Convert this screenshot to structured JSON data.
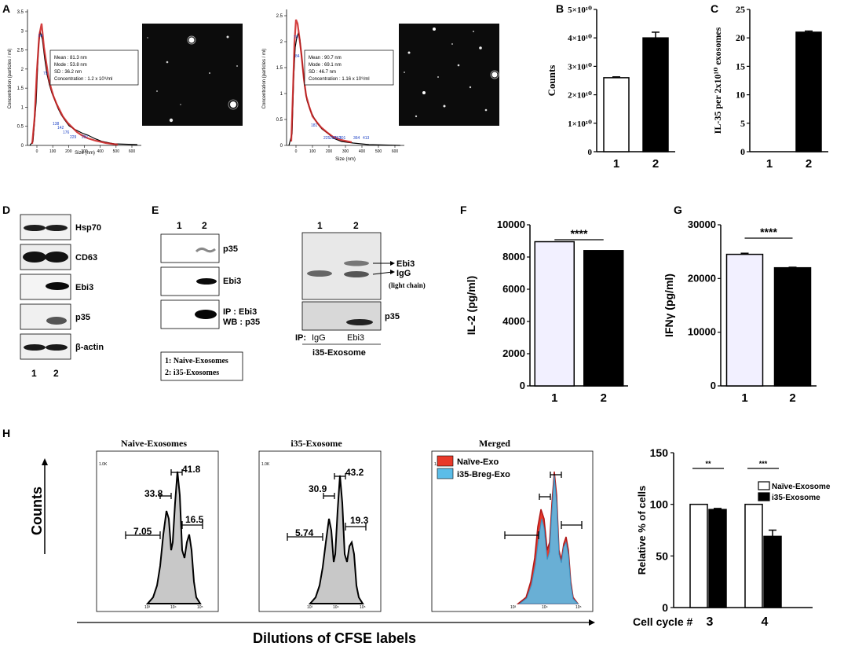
{
  "panel_letters": {
    "A": "A",
    "B": "B",
    "C": "C",
    "D": "D",
    "E": "E",
    "F": "F",
    "G": "G",
    "H": "H"
  },
  "panel_a": {
    "ylabel": "Concentration (particles / ml)",
    "xlabel": "Size (nm)",
    "left": {
      "yticks": [
        "3.5",
        "3",
        "2.5",
        "2",
        "1.5",
        "1",
        "0.5",
        "0"
      ],
      "xticks": [
        "0",
        "100",
        "200",
        "300",
        "400",
        "500",
        "600"
      ],
      "peak_labels": [
        "54",
        "79",
        "138",
        "142",
        "176",
        "229",
        "297"
      ],
      "stats": [
        "Mean : 81.3 nm",
        "Mode : 53.8 nm",
        "SD : 36.2 nm",
        "Concentration : 1.2 x 10⁹/ml"
      ]
    },
    "right": {
      "yticks": [
        "2.5",
        "2",
        "1.5",
        "1",
        "0.5",
        "0"
      ],
      "xticks": [
        "0",
        "100",
        "200",
        "300",
        "400",
        "500",
        "600"
      ],
      "peak_labels": [
        "70",
        "84",
        "181",
        "225",
        "252",
        "263",
        "301",
        "364",
        "413"
      ],
      "stats": [
        "Mean : 90.7 nm",
        "Mode : 69.1 nm",
        "SD : 46.7 nm",
        "Concentration : 1.16 x 10⁹/ml"
      ]
    }
  },
  "chart_data": [
    {
      "id": "B",
      "type": "bar",
      "title": "",
      "ylabel": "Counts",
      "xlabel": "",
      "categories": [
        "1",
        "2"
      ],
      "values": [
        26000000000.0,
        40000000000.0
      ],
      "errors": [
        300000000.0,
        2000000000.0
      ],
      "ylim": [
        0,
        50000000000.0
      ],
      "yticks": [
        "0",
        "1×10¹⁰",
        "2×10¹⁰",
        "3×10¹⁰",
        "4×10¹⁰",
        "5×10¹⁰"
      ]
    },
    {
      "id": "C",
      "type": "bar",
      "title": "",
      "ylabel": "IL-35 per 2x10¹⁰ exosomes",
      "xlabel": "",
      "categories": [
        "1",
        "2"
      ],
      "values": [
        0,
        21
      ],
      "errors": [
        0,
        0.2
      ],
      "ylim": [
        0,
        25
      ],
      "yticks": [
        "0",
        "5",
        "10",
        "15",
        "20",
        "25"
      ]
    },
    {
      "id": "F",
      "type": "bar",
      "title": "",
      "ylabel": "IL-2 (pg/ml)",
      "xlabel": "",
      "categories": [
        "1",
        "2"
      ],
      "values": [
        8950,
        8400
      ],
      "errors": [
        0,
        0
      ],
      "ylim": [
        0,
        10000
      ],
      "yticks": [
        "0",
        "2000",
        "4000",
        "6000",
        "8000",
        "10000"
      ],
      "significance": "****"
    },
    {
      "id": "G",
      "type": "bar",
      "title": "",
      "ylabel": "IFNγ (pg/ml)",
      "xlabel": "",
      "categories": [
        "1",
        "2"
      ],
      "values": [
        24500,
        22000
      ],
      "errors": [
        200,
        100
      ],
      "ylim": [
        0,
        30000
      ],
      "yticks": [
        "0",
        "10000",
        "20000",
        "30000"
      ],
      "significance": "****"
    },
    {
      "id": "H-bar",
      "type": "bar",
      "title": "",
      "ylabel": "Relative % of cells",
      "xlabel": "Cell cycle #",
      "categories": [
        "3",
        "4"
      ],
      "series": [
        {
          "name": "Naïve-Exosome",
          "values": [
            100,
            100
          ],
          "errors": [
            0,
            0
          ]
        },
        {
          "name": "i35-Exosome",
          "values": [
            95,
            69
          ],
          "errors": [
            1,
            6
          ]
        }
      ],
      "ylim": [
        0,
        150
      ],
      "yticks": [
        "0",
        "50",
        "100",
        "150"
      ],
      "significance": [
        "**",
        "***"
      ]
    }
  ],
  "panel_d": {
    "bands": [
      "Hsp70",
      "CD63",
      "Ebi3",
      "p35",
      "β-actin"
    ],
    "lanes": [
      "1",
      "2"
    ]
  },
  "panel_e": {
    "lanes": [
      "1",
      "2"
    ],
    "left_bands": [
      "p35",
      "Ebi3",
      "IP : Ebi3",
      "WB : p35"
    ],
    "legend": [
      "1: Naive-Exosomes",
      "2: i35-Exosomes"
    ],
    "right_lanes": [
      "1",
      "2"
    ],
    "right_labels": [
      "Ebi3",
      "IgG",
      "(light chain)",
      "p35"
    ],
    "ip_label": "IP:",
    "ip_lanes": [
      "IgG",
      "Ebi3"
    ],
    "ip_caption": "i35-Exosome"
  },
  "panel_h": {
    "ylabel": "Counts",
    "xlabel": "Dilutions of CFSE labels",
    "ytick_label": "1.0K",
    "xtick_labels": [
      "10³",
      "10⁴",
      "10⁵"
    ],
    "plot1": {
      "title": "Naive-Exosomes",
      "gates": [
        "7.05",
        "33.8",
        "41.8",
        "16.5"
      ]
    },
    "plot2": {
      "title": "i35-Exosome",
      "gates": [
        "5.74",
        "30.9",
        "43.2",
        "19.3"
      ]
    },
    "plot3": {
      "title": "Merged",
      "legend": [
        "Naïve-Exo",
        "i35-Breg-Exo"
      ]
    },
    "colors": {
      "naive": "#e8392a",
      "breg": "#5bbde8",
      "grey": "#c8c8c8"
    }
  }
}
